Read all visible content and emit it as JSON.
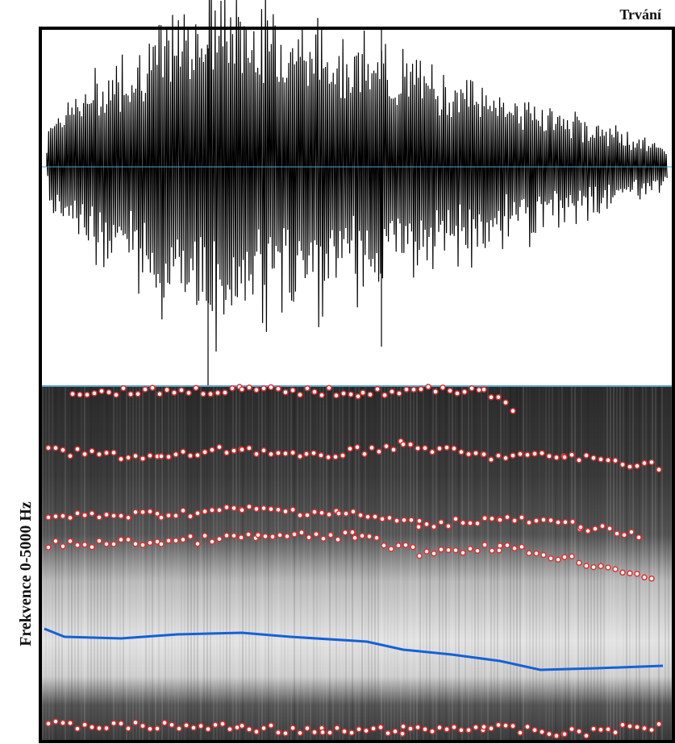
{
  "header": {
    "label": "Trvání"
  },
  "spectrogram": {
    "axis_label": "Frekvence 0-5000 Hz"
  }
}
